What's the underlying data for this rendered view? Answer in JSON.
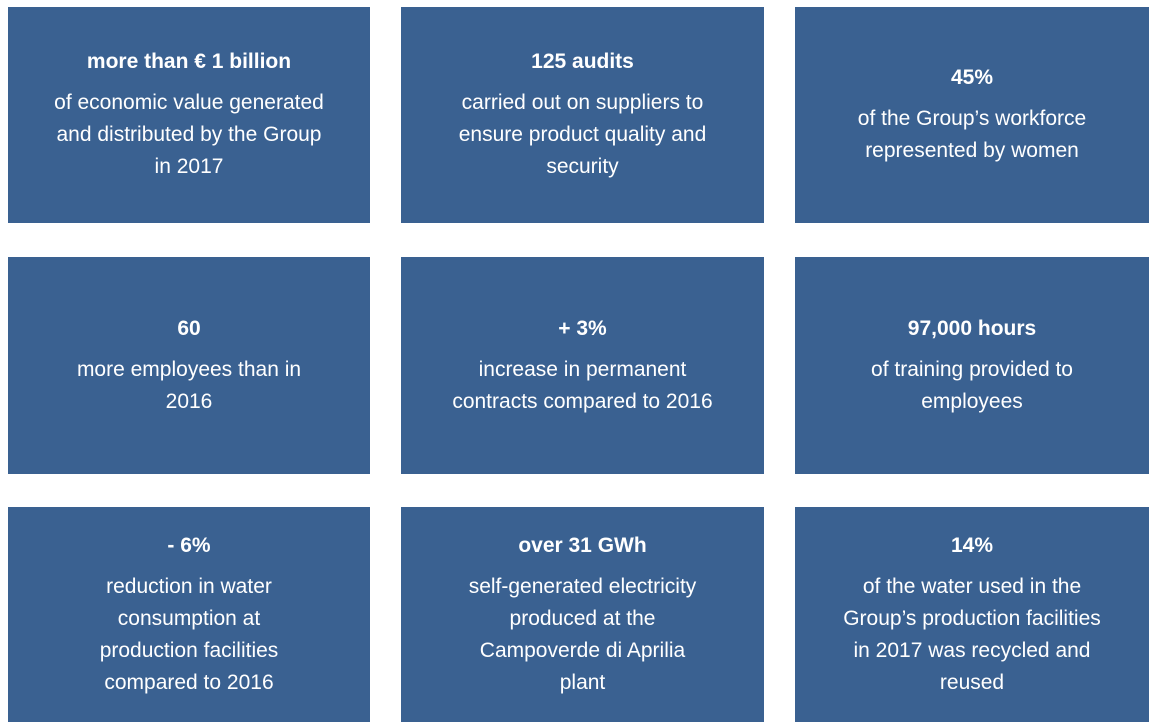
{
  "tiles": [
    {
      "heading": "more than € 1 billion",
      "lines": [
        "of economic value generated",
        "and distributed by the Group",
        "in 2017"
      ]
    },
    {
      "heading": "125 audits",
      "lines": [
        "carried out on suppliers to",
        "ensure product quality and",
        "security"
      ]
    },
    {
      "heading": "45%",
      "lines": [
        "of the Group’s workforce",
        "represented by women"
      ]
    },
    {
      "heading": "60",
      "lines": [
        "more employees than in",
        "2016"
      ]
    },
    {
      "heading": "+ 3%",
      "lines": [
        "increase in permanent",
        "contracts compared to 2016"
      ]
    },
    {
      "heading": "97,000 hours",
      "lines": [
        "of training provided to",
        "employees"
      ]
    },
    {
      "heading": "- 6%",
      "lines": [
        "reduction in water",
        "consumption at",
        "production facilities",
        "compared to 2016"
      ]
    },
    {
      "heading": "over 31 GWh",
      "lines": [
        "self-generated electricity",
        "produced at the",
        "Campoverde di Aprilia",
        "plant"
      ]
    },
    {
      "heading": "14%",
      "lines": [
        "of the water used in the",
        "Group’s production facilities",
        "in 2017 was recycled and",
        "reused"
      ]
    }
  ]
}
